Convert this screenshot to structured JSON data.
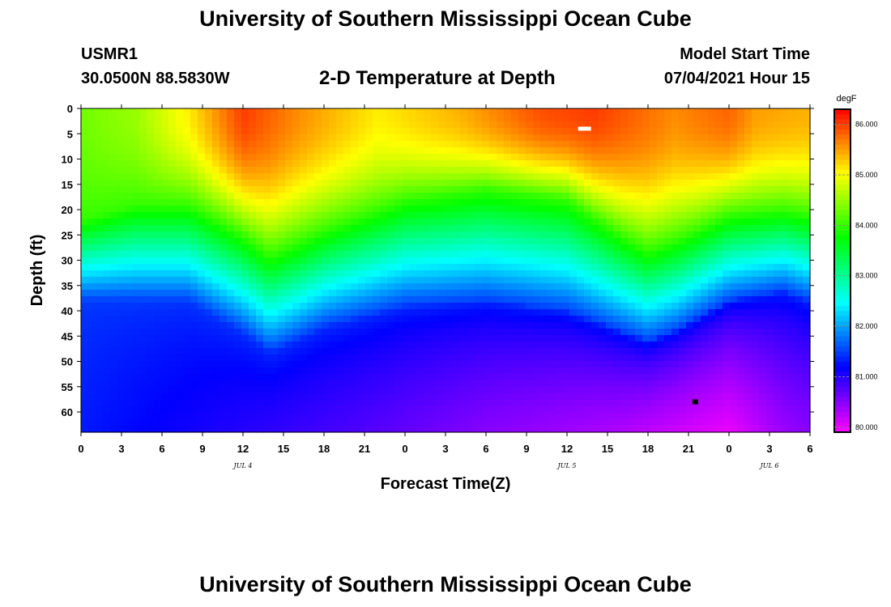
{
  "header": {
    "title": "University of Southern Mississippi Ocean Cube",
    "station": "USMR1",
    "coords": "30.0500N  88.5830W",
    "subtitle": "2-D Temperature at Depth",
    "model_label": "Model Start Time",
    "model_time": "07/04/2021 Hour 15"
  },
  "footer": {
    "title": "University of Southern Mississippi Ocean Cube"
  },
  "chart_data": {
    "type": "heatmap",
    "title": "2-D Temperature at Depth",
    "xlabel": "Forecast Time(Z)",
    "ylabel": "Depth (ft)",
    "x_hours": [
      0,
      54
    ],
    "x_tick_labels": [
      "0",
      "3",
      "6",
      "9",
      "12",
      "15",
      "18",
      "21",
      "0",
      "3",
      "6",
      "9",
      "12",
      "15",
      "18",
      "21",
      "0",
      "3",
      "6"
    ],
    "day_labels": [
      {
        "label": "JUL 4",
        "hour": 12
      },
      {
        "label": "JUL 5",
        "hour": 36
      },
      {
        "label": "JUL 6",
        "hour": 51
      }
    ],
    "ylim": [
      0,
      64
    ],
    "y_ticks": [
      0,
      5,
      10,
      15,
      20,
      25,
      30,
      35,
      40,
      45,
      50,
      55,
      60
    ],
    "colorbar": {
      "unit": "degF",
      "range": [
        79.9,
        86.3
      ],
      "ticks": [
        "80.000",
        "81.000",
        "82.000",
        "83.000",
        "84.000",
        "85.000",
        "86.000"
      ]
    },
    "thermocline": {
      "hours": [
        0,
        4,
        8,
        12,
        14,
        18,
        24,
        30,
        36,
        40,
        42,
        44,
        48,
        52,
        54
      ],
      "depth_84F_ft": [
        22,
        19,
        19,
        25,
        29,
        24,
        18,
        16,
        18,
        25,
        28,
        26,
        21,
        20,
        21
      ],
      "depth_81_5F_ft": [
        38,
        38,
        38,
        44,
        48,
        43,
        39,
        38,
        40,
        44,
        46,
        44,
        38,
        36,
        38
      ]
    },
    "surface_temperature_degF": {
      "hours": [
        0,
        4,
        8,
        12,
        16,
        22,
        28,
        34,
        38,
        44,
        48,
        50,
        54
      ],
      "values": [
        84.3,
        84.5,
        85.1,
        86.0,
        85.6,
        85.1,
        85.4,
        85.9,
        86.0,
        85.6,
        85.8,
        85.5,
        85.4
      ]
    },
    "bottom_temperature_degF": {
      "hours": [
        0,
        12,
        20,
        30,
        40,
        48,
        52,
        54
      ],
      "values": [
        81.3,
        81.0,
        80.8,
        80.5,
        80.3,
        80.0,
        80.4,
        80.5
      ]
    },
    "markers": [
      {
        "name": "white-marker",
        "hour": 37.3,
        "depth_ft": 4,
        "color": "#ffffff"
      },
      {
        "name": "black-marker",
        "hour": 45.5,
        "depth_ft": 58,
        "color": "#000000"
      }
    ]
  }
}
